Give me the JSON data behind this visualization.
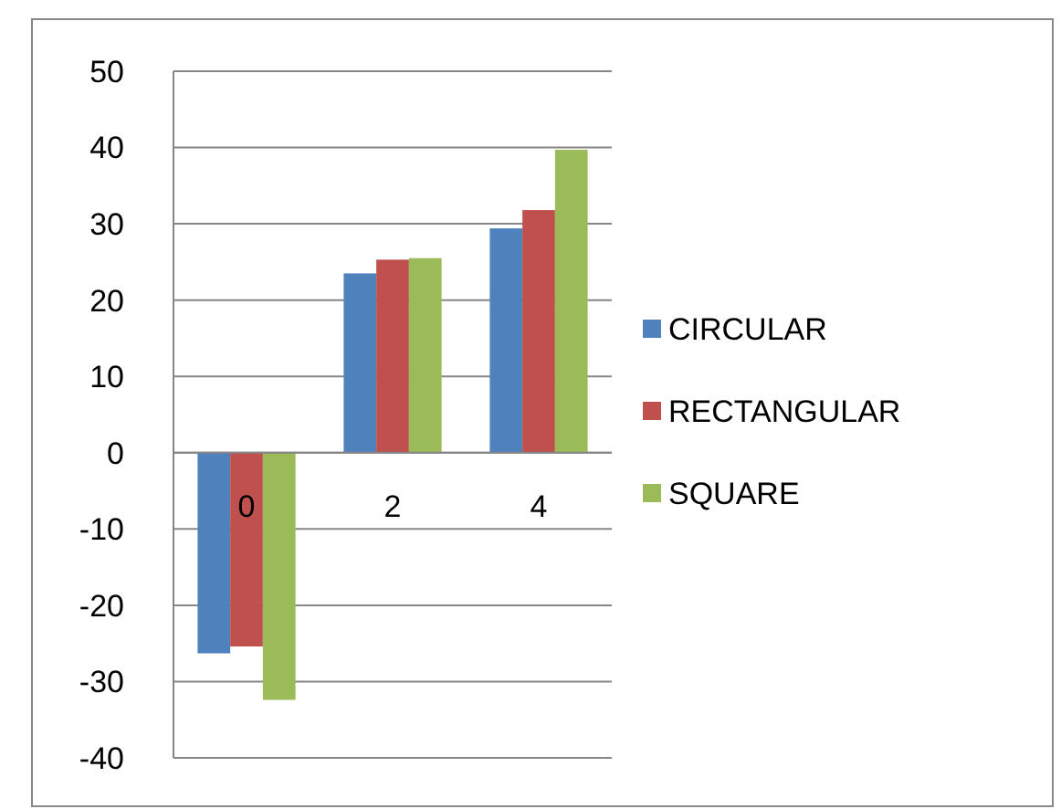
{
  "chart_data": {
    "type": "bar",
    "categories": [
      "0",
      "2",
      "4"
    ],
    "series": [
      {
        "name": "CIRCULAR",
        "color": "#4f81bd",
        "values": [
          -26.3,
          23.5,
          29.4
        ]
      },
      {
        "name": "RECTANGULAR",
        "color": "#c0504d",
        "values": [
          -25.4,
          25.3,
          31.8
        ]
      },
      {
        "name": "SQUARE",
        "color": "#9bbb59",
        "values": [
          -32.4,
          25.5,
          39.7
        ]
      }
    ],
    "ylim": [
      -40,
      50
    ],
    "yticks": [
      -40,
      -30,
      -20,
      -10,
      0,
      10,
      20,
      30,
      40,
      50
    ],
    "grid": "y",
    "legend": "right"
  }
}
